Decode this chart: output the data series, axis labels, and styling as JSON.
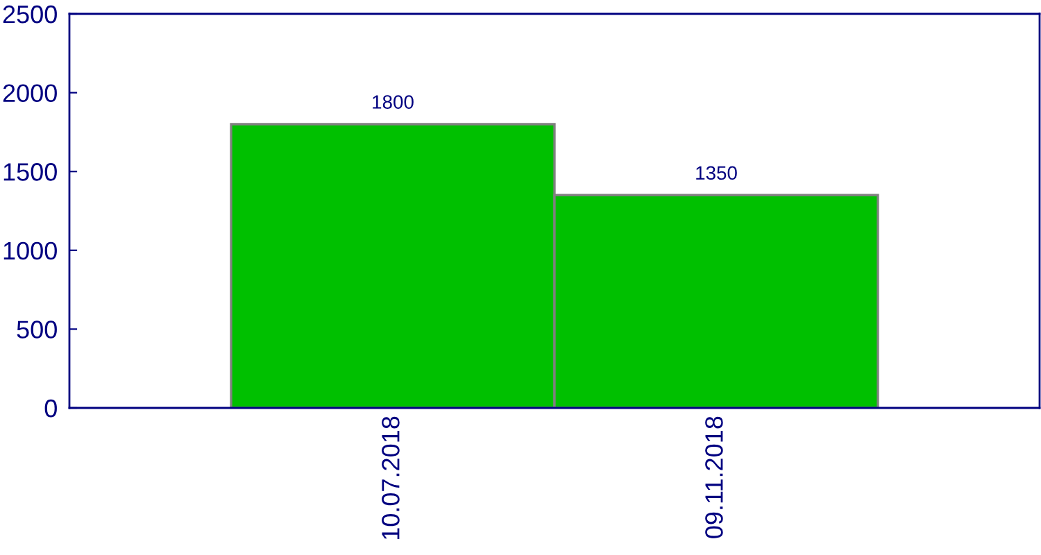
{
  "chart_data": {
    "type": "bar",
    "categories": [
      "10.07.2018",
      "09.11.2018"
    ],
    "series": [
      {
        "color": "#00c000",
        "values": [
          1800,
          1350
        ]
      }
    ],
    "ylim": [
      0,
      2500
    ],
    "yticks": [
      0,
      500,
      1000,
      1500,
      2000,
      2500
    ],
    "data_labels": true,
    "grid": false,
    "legend": false
  }
}
